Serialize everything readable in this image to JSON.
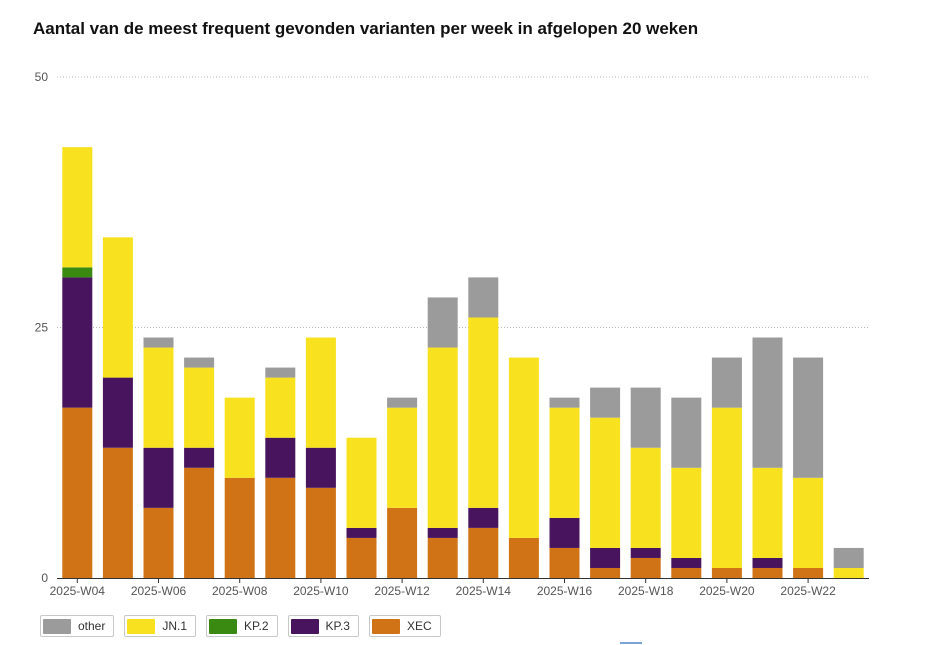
{
  "chart_data": {
    "type": "bar",
    "stacked": true,
    "title": "Aantal van de meest frequent gevonden varianten per week in afgelopen 20 weken",
    "xlabel": "",
    "ylabel": "",
    "ylim": [
      0,
      50
    ],
    "yticks": [
      0,
      25,
      50
    ],
    "grid": "dotted horizontal",
    "legend_position": "bottom-left",
    "categories": [
      "2025-W04",
      "2025-W05",
      "2025-W06",
      "2025-W07",
      "2025-W08",
      "2025-W09",
      "2025-W10",
      "2025-W11",
      "2025-W12",
      "2025-W13",
      "2025-W14",
      "2025-W15",
      "2025-W16",
      "2025-W17",
      "2025-W18",
      "2025-W19",
      "2025-W20",
      "2025-W21",
      "2025-W22",
      "2025-W23"
    ],
    "xtick_labels": [
      "2025-W04",
      "",
      "2025-W06",
      "",
      "2025-W08",
      "",
      "2025-W10",
      "",
      "2025-W12",
      "",
      "2025-W14",
      "",
      "2025-W16",
      "",
      "2025-W18",
      "",
      "2025-W20",
      "",
      "2025-W22",
      ""
    ],
    "series": [
      {
        "name": "XEC",
        "color": "#d07317",
        "values": [
          17,
          13,
          7,
          11,
          10,
          10,
          9,
          4,
          7,
          4,
          5,
          4,
          3,
          1,
          2,
          1,
          1,
          1,
          1,
          0
        ]
      },
      {
        "name": "KP.3",
        "color": "#47145d",
        "values": [
          13,
          7,
          6,
          2,
          0,
          4,
          4,
          1,
          0,
          1,
          2,
          0,
          3,
          2,
          1,
          1,
          0,
          1,
          0,
          0
        ]
      },
      {
        "name": "KP.2",
        "color": "#3a8a12",
        "values": [
          1,
          0,
          0,
          0,
          0,
          0,
          0,
          0,
          0,
          0,
          0,
          0,
          0,
          0,
          0,
          0,
          0,
          0,
          0,
          0
        ]
      },
      {
        "name": "JN.1",
        "color": "#f8e11f",
        "values": [
          12,
          14,
          10,
          8,
          8,
          6,
          11,
          9,
          10,
          18,
          19,
          18,
          11,
          13,
          10,
          9,
          16,
          9,
          9,
          1
        ]
      },
      {
        "name": "other",
        "color": "#9b9b9b",
        "values": [
          0,
          0,
          1,
          1,
          0,
          1,
          0,
          0,
          1,
          5,
          4,
          0,
          1,
          3,
          6,
          7,
          5,
          13,
          12,
          2
        ]
      }
    ]
  },
  "legend": {
    "items": [
      {
        "label": "other",
        "color": "#9b9b9b"
      },
      {
        "label": "JN.1",
        "color": "#f8e11f"
      },
      {
        "label": "KP.2",
        "color": "#3a8a12"
      },
      {
        "label": "KP.3",
        "color": "#47145d"
      },
      {
        "label": "XEC",
        "color": "#d07317"
      }
    ]
  }
}
